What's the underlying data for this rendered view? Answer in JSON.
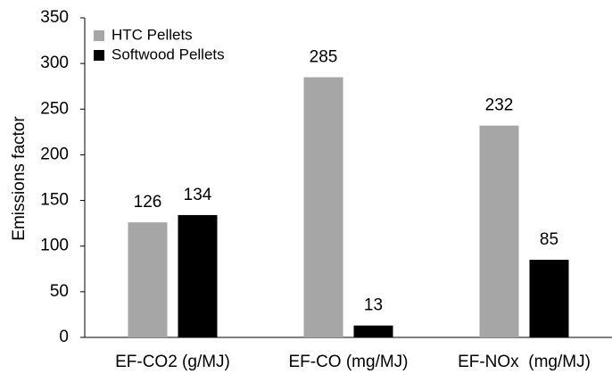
{
  "chart_data": {
    "type": "bar",
    "y_label": "Emissions factor",
    "categories": [
      "EF-CO2 (g/MJ)",
      "EF-CO (mg/MJ)",
      "EF-NOx  (mg/MJ)"
    ],
    "series": [
      {
        "name": "HTC Pellets",
        "color": "#a6a6a6",
        "values": [
          126,
          285,
          232
        ]
      },
      {
        "name": "Softwood Pellets",
        "color": "#000000",
        "values": [
          134,
          13,
          85
        ]
      }
    ],
    "ylim": [
      0,
      350
    ],
    "yticks": [
      0,
      50,
      100,
      150,
      200,
      250,
      300,
      350
    ],
    "grid": false,
    "legend": "top-left"
  }
}
